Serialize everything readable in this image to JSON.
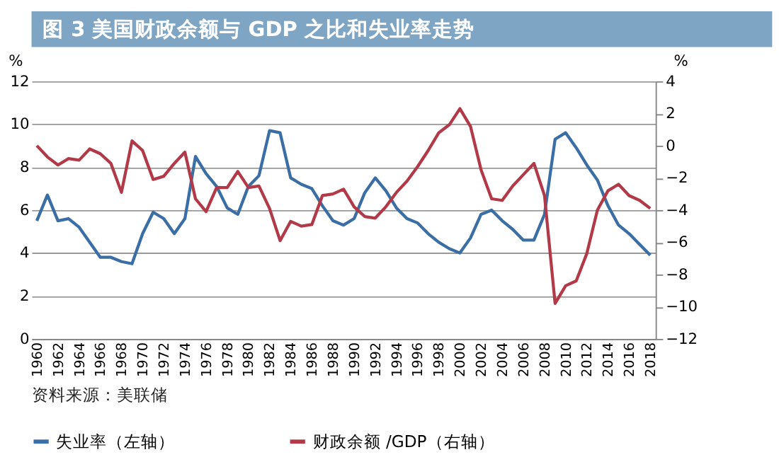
{
  "chart_data": {
    "type": "line",
    "title": "图 3  美国财政余额与 GDP 之比和失业率走势",
    "categories": [
      "1960",
      null,
      "1962",
      null,
      "1964",
      null,
      "1966",
      null,
      "1968",
      null,
      "1970",
      null,
      "1972",
      null,
      "1974",
      null,
      "1976",
      null,
      "1978",
      null,
      "1980",
      null,
      "1982",
      null,
      "1984",
      null,
      "1986",
      null,
      "1988",
      null,
      "1990",
      null,
      "1992",
      null,
      "1994",
      null,
      "1996",
      null,
      "1998",
      null,
      "2000",
      null,
      "2002",
      null,
      "2004",
      null,
      "2006",
      null,
      "2008",
      null,
      "2010",
      null,
      "2012",
      null,
      "2014",
      null,
      "2016",
      null,
      "2018"
    ],
    "series": [
      {
        "name": "失业率（左轴）",
        "color": "#3a6ea5",
        "values": [
          5.5,
          6.7,
          5.5,
          5.6,
          5.2,
          4.5,
          3.8,
          3.8,
          3.6,
          3.5,
          4.9,
          5.9,
          5.6,
          4.9,
          5.6,
          8.5,
          7.7,
          7.1,
          6.1,
          5.8,
          7.1,
          7.6,
          9.7,
          9.6,
          7.5,
          7.2,
          7.0,
          6.2,
          5.5,
          5.3,
          5.6,
          6.8,
          7.5,
          6.9,
          6.1,
          5.6,
          5.4,
          4.9,
          4.5,
          4.2,
          4.0,
          4.7,
          5.8,
          6.0,
          5.5,
          5.1,
          4.6,
          4.6,
          5.8,
          9.3,
          9.6,
          8.9,
          8.1,
          7.4,
          6.2,
          5.3,
          4.9,
          4.4,
          3.9
        ]
      },
      {
        "name": "财政余额 /GDP（右轴）",
        "color": "#b23a48",
        "axis": "y2",
        "values": [
          0,
          -0.7,
          -1.2,
          -0.8,
          -0.9,
          -0.2,
          -0.5,
          -1.1,
          -2.9,
          0.3,
          -0.3,
          -2.1,
          -1.9,
          -1.1,
          -0.4,
          -3.3,
          -4.1,
          -2.6,
          -2.6,
          -1.6,
          -2.6,
          -2.5,
          -3.9,
          -5.9,
          -4.7,
          -5.0,
          -4.9,
          -3.1,
          -3.0,
          -2.7,
          -3.8,
          -4.4,
          -4.5,
          -3.8,
          -2.9,
          -2.2,
          -1.3,
          -0.3,
          0.8,
          1.3,
          2.3,
          1.2,
          -1.5,
          -3.3,
          -3.4,
          -2.5,
          -1.8,
          -1.1,
          -3.1,
          -9.8,
          -8.7,
          -8.4,
          -6.7,
          -4.0,
          -2.8,
          -2.4,
          -3.1,
          -3.4,
          -3.9
        ]
      }
    ],
    "ylabel": "%",
    "y2label": "%",
    "ylim": [
      0,
      12
    ],
    "yticks": [
      0,
      2,
      4,
      6,
      8,
      10,
      12
    ],
    "y2lim": [
      -12,
      4
    ],
    "y2ticks": [
      -12,
      -10,
      -8,
      -6,
      -4,
      -2,
      0,
      2,
      4
    ],
    "grid": "y",
    "legend": "bottom",
    "line_style": "solid",
    "marker": "none",
    "annotations": [
      "资料来源：美联储"
    ]
  }
}
